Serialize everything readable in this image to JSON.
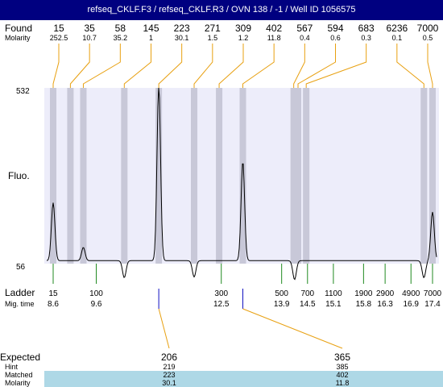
{
  "window": {
    "title": "refseq_CKLF.F3 / refseq_CKLF.R3 / OVN 138 / -1 / Well ID 1056575",
    "title_bg": "#000080"
  },
  "labels": {
    "found": "Found",
    "molarity": "Molarity",
    "fluo": "Fluo.",
    "ladder": "Ladder",
    "mig_time": "Mig. time",
    "expected": "Expected",
    "hint": "Hint",
    "matched": "Matched",
    "molarity2": "Molarity"
  },
  "colors": {
    "plot_bg": "#ededfa",
    "band": "#c8c8d8",
    "orange": "#e8a010",
    "green": "#208a20",
    "blue": "#1010c0",
    "highlight": "#aed8e6",
    "trace": "#000000"
  },
  "chart_data": {
    "type": "line",
    "ylabel": "Fluo.",
    "y_ticks": [
      "532",
      "56"
    ],
    "ylim": [
      56,
      532
    ],
    "found_peaks": [
      {
        "size": "15",
        "molarity": "252.5",
        "mig": 8.6
      },
      {
        "size": "35",
        "molarity": "10.7",
        "mig": 9.0
      },
      {
        "size": "58",
        "molarity": "35.2",
        "mig": 9.3
      },
      {
        "size": "145",
        "molarity": "1",
        "mig": 10.25
      },
      {
        "size": "223",
        "molarity": "30.1",
        "mig": 11.05
      },
      {
        "size": "271",
        "molarity": "1.5",
        "mig": 11.87
      },
      {
        "size": "309",
        "molarity": "1.2",
        "mig": 12.45
      },
      {
        "size": "402",
        "molarity": "11.8",
        "mig": 13.0
      },
      {
        "size": "567",
        "molarity": "0.4",
        "mig": 14.18
      },
      {
        "size": "594",
        "molarity": "0.6",
        "mig": 14.28
      },
      {
        "size": "683",
        "molarity": "0.3",
        "mig": 14.47
      },
      {
        "size": "6236",
        "molarity": "0.1",
        "mig": 17.2
      },
      {
        "size": "7000",
        "molarity": "0.5",
        "mig": 17.4
      }
    ],
    "ladder": [
      {
        "size": "15",
        "mig": "8.6"
      },
      {
        "size": "100",
        "mig": "9.6"
      },
      {
        "size": "300",
        "mig": "12.5"
      },
      {
        "size": "500",
        "mig": "13.9"
      },
      {
        "size": "700",
        "mig": "14.5"
      },
      {
        "size": "1100",
        "mig": "15.1"
      },
      {
        "size": "1900",
        "mig": "15.8"
      },
      {
        "size": "2900",
        "mig": "16.3"
      },
      {
        "size": "4900",
        "mig": "16.9"
      },
      {
        "size": "7000",
        "mig": "17.4"
      }
    ],
    "expected": [
      {
        "expected": "206",
        "hint": "219",
        "matched": "223",
        "molarity": "30.1",
        "mig": 11.05
      },
      {
        "expected": "365",
        "hint": "385",
        "matched": "402",
        "molarity": "11.8",
        "mig": 13.0
      }
    ],
    "peaks": [
      {
        "mig": 8.6,
        "height": 213
      },
      {
        "mig": 9.3,
        "height": 92
      },
      {
        "mig": 10.25,
        "height": 10
      },
      {
        "mig": 11.05,
        "height": 532
      },
      {
        "mig": 11.87,
        "height": 12
      },
      {
        "mig": 13.0,
        "height": 325
      },
      {
        "mig": 14.2,
        "height": 5
      },
      {
        "mig": 17.2,
        "height": 10
      },
      {
        "mig": 17.4,
        "height": 188
      }
    ]
  }
}
